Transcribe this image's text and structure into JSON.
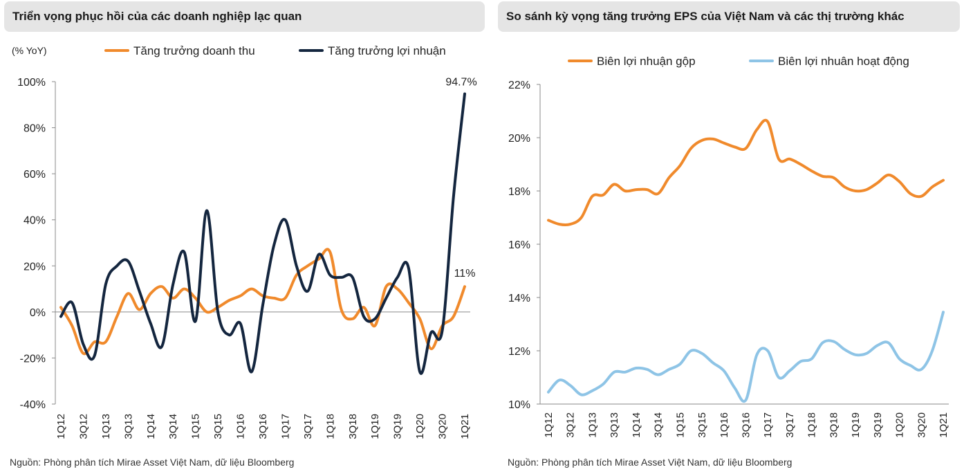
{
  "chart_data": [
    {
      "type": "line",
      "title": "Triển vọng phục hồi của các doanh nghiệp lạc quan",
      "ylabel": "(% YoY)",
      "xlabel": "",
      "ylim": [
        -40,
        100
      ],
      "yticks": [
        -40,
        -20,
        0,
        20,
        40,
        60,
        80,
        100
      ],
      "ytick_labels": [
        "-40%",
        "-20%",
        "0%",
        "20%",
        "40%",
        "60%",
        "80%",
        "100%"
      ],
      "x_labels": [
        "1Q12",
        "3Q12",
        "1Q13",
        "3Q13",
        "1Q14",
        "3Q14",
        "1Q15",
        "3Q15",
        "1Q16",
        "3Q16",
        "1Q17",
        "3Q17",
        "1Q18",
        "3Q18",
        "1Q19",
        "3Q19",
        "1Q20",
        "3Q20",
        "1Q21"
      ],
      "x_label_positions": [
        0,
        2,
        4,
        6,
        8,
        10,
        12,
        14,
        16,
        18,
        20,
        22,
        24,
        26,
        28,
        30,
        32,
        34,
        36
      ],
      "legend": "top",
      "grid": false,
      "annotations": [
        {
          "text": "94.7%",
          "series": 1,
          "index": 36
        },
        {
          "text": "11%",
          "series": 0,
          "index": 36
        }
      ],
      "series": [
        {
          "name": "Tăng trưởng doanh thu",
          "color": "#f08a2c",
          "values": [
            2,
            -6,
            -18,
            -13,
            -13,
            -2,
            8,
            1,
            8,
            11,
            6,
            10,
            6,
            0,
            2,
            5,
            7,
            10,
            7,
            6,
            6,
            16,
            20,
            23,
            26,
            1,
            -3,
            2,
            -6,
            11,
            10,
            4,
            -3,
            -16,
            -6,
            -2,
            11
          ]
        },
        {
          "name": "Tăng trưởng lợi nhuận",
          "color": "#14263f",
          "values": [
            -2,
            4,
            -14,
            -19,
            12,
            20,
            22,
            9,
            -5,
            -15,
            12,
            26,
            -4,
            44,
            0,
            -10,
            -5,
            -26,
            3,
            29,
            40,
            20,
            9,
            25,
            16,
            15,
            15,
            -2,
            -3,
            6,
            15,
            19,
            -26,
            -9,
            -8,
            50,
            94.7
          ]
        }
      ]
    },
    {
      "type": "line",
      "title": "So sánh kỳ vọng tăng trưởng EPS của Việt Nam và các thị trường khác",
      "xlabel": "",
      "ylabel": "",
      "ylim": [
        10,
        22
      ],
      "yticks": [
        10,
        12,
        14,
        16,
        18,
        20,
        22
      ],
      "ytick_labels": [
        "10%",
        "12%",
        "14%",
        "16%",
        "18%",
        "20%",
        "22%"
      ],
      "x_labels": [
        "1Q12",
        "3Q12",
        "1Q13",
        "3Q13",
        "1Q14",
        "3Q14",
        "1Q15",
        "3Q15",
        "1Q16",
        "3Q16",
        "1Q17",
        "3Q17",
        "1Q18",
        "3Q18",
        "1Q19",
        "3Q19",
        "1Q20",
        "3Q20",
        "1Q21"
      ],
      "x_label_positions": [
        0,
        2,
        4,
        6,
        8,
        10,
        12,
        14,
        16,
        18,
        20,
        22,
        24,
        26,
        28,
        30,
        32,
        34,
        36
      ],
      "legend": "top",
      "grid": false,
      "series": [
        {
          "name": "Biên lợi nhuận gộp",
          "color": "#f08a2c",
          "values": [
            16.9,
            16.75,
            16.75,
            17.0,
            17.8,
            17.85,
            18.25,
            18.0,
            18.05,
            18.05,
            17.9,
            18.5,
            18.95,
            19.6,
            19.9,
            19.95,
            19.8,
            19.65,
            19.6,
            20.3,
            20.6,
            19.2,
            19.2,
            19.0,
            18.75,
            18.55,
            18.5,
            18.15,
            18.0,
            18.05,
            18.3,
            18.6,
            18.35,
            17.9,
            17.8,
            18.15,
            18.4
          ]
        },
        {
          "name": "Biên lợi nhuân hoạt động",
          "color": "#8ec4e6",
          "values": [
            10.45,
            10.9,
            10.7,
            10.35,
            10.5,
            10.75,
            11.2,
            11.2,
            11.35,
            11.3,
            11.1,
            11.3,
            11.5,
            12.0,
            11.9,
            11.55,
            11.25,
            10.6,
            10.15,
            11.85,
            12.0,
            11.0,
            11.25,
            11.6,
            11.7,
            12.3,
            12.35,
            12.05,
            11.85,
            11.9,
            12.2,
            12.3,
            11.7,
            11.45,
            11.3,
            12.0,
            13.45
          ]
        }
      ]
    }
  ],
  "source_left": "Nguồn: Phòng phân tích Mirae Asset Việt Nam, dữ liệu Bloomberg",
  "source_right": "Nguồn: Phòng phân tích Mirae Asset Việt Nam, dữ liệu Bloomberg"
}
